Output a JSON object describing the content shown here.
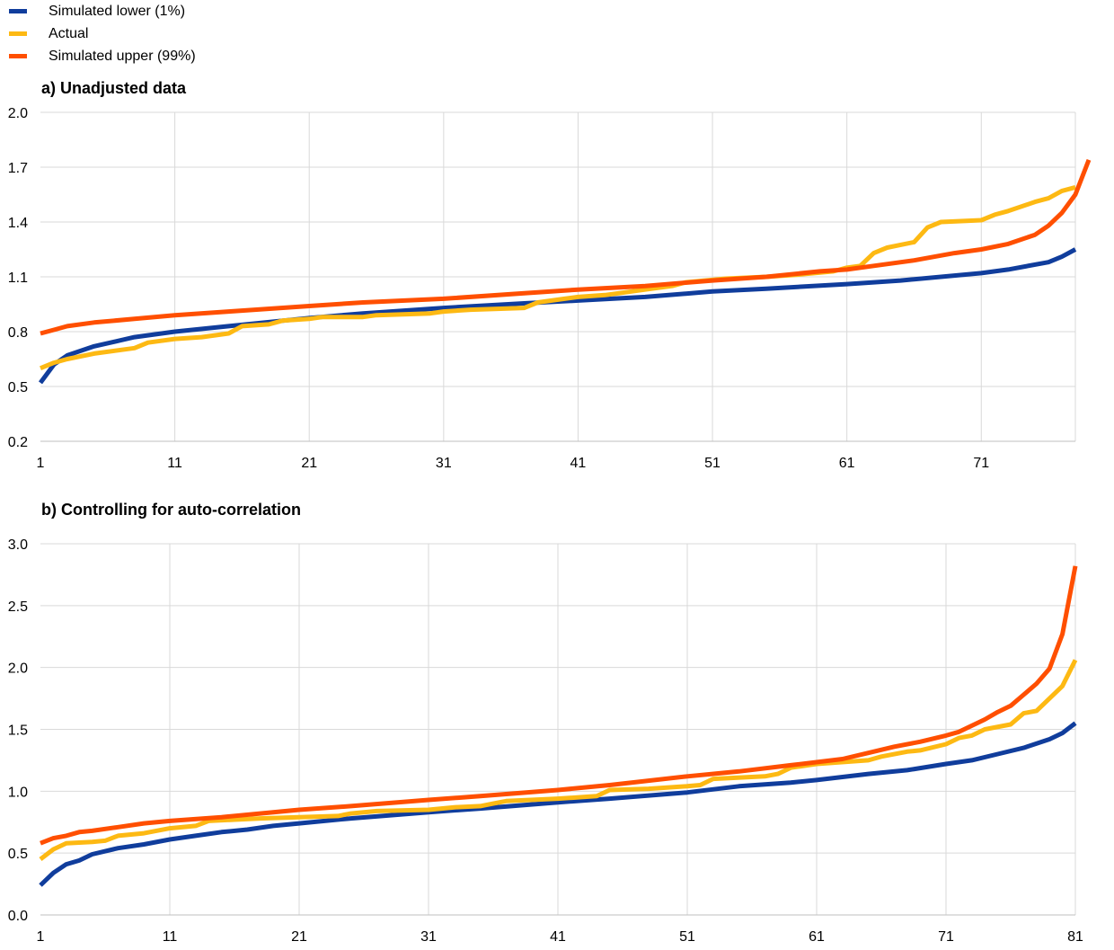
{
  "legend": [
    {
      "label": "Simulated lower (1%)",
      "color": "#103d9c"
    },
    {
      "label": "Actual",
      "color": "#fdb913"
    },
    {
      "label": "Simulated upper (99%)",
      "color": "#ff4f00"
    }
  ],
  "chart_data": [
    {
      "type": "line",
      "title": "a) Unadjusted data",
      "xlabel": "",
      "ylabel": "",
      "xlim": [
        1,
        78
      ],
      "ylim": [
        0.2,
        2.0
      ],
      "y_ticks": [
        "0.2",
        "0.5",
        "0.8",
        "1.1",
        "1.4",
        "1.7",
        "2.0"
      ],
      "x_ticks": [
        "1",
        "11",
        "21",
        "31",
        "41",
        "51",
        "61",
        "71"
      ],
      "grid": true,
      "legend_position": "top-left",
      "series": [
        {
          "name": "Simulated lower (1%)",
          "color": "#103d9c",
          "points": [
            [
              1,
              0.52
            ],
            [
              2,
              0.62
            ],
            [
              3,
              0.67
            ],
            [
              5,
              0.72
            ],
            [
              8,
              0.77
            ],
            [
              11,
              0.8
            ],
            [
              15,
              0.83
            ],
            [
              21,
              0.875
            ],
            [
              25,
              0.9
            ],
            [
              31,
              0.93
            ],
            [
              37,
              0.955
            ],
            [
              41,
              0.97
            ],
            [
              46,
              0.99
            ],
            [
              51,
              1.02
            ],
            [
              55,
              1.035
            ],
            [
              61,
              1.06
            ],
            [
              65,
              1.08
            ],
            [
              71,
              1.12
            ],
            [
              73,
              1.14
            ],
            [
              76,
              1.18
            ],
            [
              77,
              1.21
            ],
            [
              78,
              1.25
            ]
          ]
        },
        {
          "name": "Actual",
          "color": "#fdb913",
          "points": [
            [
              1,
              0.6
            ],
            [
              2,
              0.63
            ],
            [
              3,
              0.65
            ],
            [
              5,
              0.68
            ],
            [
              8,
              0.71
            ],
            [
              9,
              0.74
            ],
            [
              11,
              0.76
            ],
            [
              13,
              0.77
            ],
            [
              15,
              0.79
            ],
            [
              16,
              0.83
            ],
            [
              18,
              0.84
            ],
            [
              19,
              0.86
            ],
            [
              21,
              0.87
            ],
            [
              22,
              0.88
            ],
            [
              25,
              0.88
            ],
            [
              26,
              0.89
            ],
            [
              30,
              0.9
            ],
            [
              31,
              0.91
            ],
            [
              33,
              0.92
            ],
            [
              37,
              0.93
            ],
            [
              38,
              0.96
            ],
            [
              40,
              0.98
            ],
            [
              41,
              0.99
            ],
            [
              43,
              1.0
            ],
            [
              44,
              1.01
            ],
            [
              46,
              1.03
            ],
            [
              48,
              1.05
            ],
            [
              49,
              1.07
            ],
            [
              52,
              1.09
            ],
            [
              55,
              1.1
            ],
            [
              57,
              1.11
            ],
            [
              60,
              1.13
            ],
            [
              61,
              1.15
            ],
            [
              62,
              1.16
            ],
            [
              63,
              1.23
            ],
            [
              64,
              1.26
            ],
            [
              66,
              1.29
            ],
            [
              67,
              1.37
            ],
            [
              68,
              1.4
            ],
            [
              71,
              1.41
            ],
            [
              72,
              1.44
            ],
            [
              73,
              1.46
            ],
            [
              75,
              1.51
            ],
            [
              76,
              1.53
            ],
            [
              77,
              1.57
            ],
            [
              78,
              1.59
            ]
          ]
        },
        {
          "name": "Simulated upper (99%)",
          "color": "#ff4f00",
          "points": [
            [
              1,
              0.79
            ],
            [
              2,
              0.81
            ],
            [
              3,
              0.83
            ],
            [
              5,
              0.85
            ],
            [
              8,
              0.87
            ],
            [
              11,
              0.89
            ],
            [
              15,
              0.91
            ],
            [
              21,
              0.94
            ],
            [
              25,
              0.96
            ],
            [
              31,
              0.98
            ],
            [
              37,
              1.01
            ],
            [
              41,
              1.03
            ],
            [
              46,
              1.05
            ],
            [
              51,
              1.08
            ],
            [
              55,
              1.1
            ],
            [
              59,
              1.13
            ],
            [
              61,
              1.14
            ],
            [
              63,
              1.16
            ],
            [
              66,
              1.19
            ],
            [
              69,
              1.23
            ],
            [
              71,
              1.25
            ],
            [
              73,
              1.28
            ],
            [
              75,
              1.33
            ],
            [
              76,
              1.38
            ],
            [
              77,
              1.45
            ],
            [
              78,
              1.55
            ],
            [
              79,
              1.74
            ]
          ]
        }
      ]
    },
    {
      "type": "line",
      "title": "b) Controlling for auto-correlation",
      "xlabel": "",
      "ylabel": "",
      "xlim": [
        1,
        81
      ],
      "ylim": [
        0.0,
        3.0
      ],
      "y_ticks": [
        "0.0",
        "0.5",
        "1.0",
        "1.5",
        "2.0",
        "2.5",
        "3.0"
      ],
      "x_ticks": [
        "1",
        "11",
        "21",
        "31",
        "41",
        "51",
        "61",
        "71",
        "81"
      ],
      "grid": true,
      "series": [
        {
          "name": "Simulated lower (1%)",
          "color": "#103d9c",
          "points": [
            [
              1,
              0.24
            ],
            [
              2,
              0.34
            ],
            [
              3,
              0.41
            ],
            [
              4,
              0.44
            ],
            [
              5,
              0.49
            ],
            [
              7,
              0.54
            ],
            [
              9,
              0.57
            ],
            [
              11,
              0.61
            ],
            [
              13,
              0.64
            ],
            [
              15,
              0.67
            ],
            [
              17,
              0.69
            ],
            [
              19,
              0.72
            ],
            [
              21,
              0.74
            ],
            [
              25,
              0.78
            ],
            [
              31,
              0.83
            ],
            [
              35,
              0.86
            ],
            [
              41,
              0.91
            ],
            [
              45,
              0.94
            ],
            [
              51,
              0.99
            ],
            [
              55,
              1.04
            ],
            [
              59,
              1.07
            ],
            [
              61,
              1.09
            ],
            [
              65,
              1.14
            ],
            [
              68,
              1.17
            ],
            [
              71,
              1.22
            ],
            [
              73,
              1.25
            ],
            [
              75,
              1.3
            ],
            [
              77,
              1.35
            ],
            [
              79,
              1.42
            ],
            [
              80,
              1.47
            ],
            [
              81,
              1.55
            ]
          ]
        },
        {
          "name": "Actual",
          "color": "#fdb913",
          "points": [
            [
              1,
              0.45
            ],
            [
              2,
              0.53
            ],
            [
              3,
              0.58
            ],
            [
              5,
              0.59
            ],
            [
              6,
              0.6
            ],
            [
              7,
              0.64
            ],
            [
              9,
              0.66
            ],
            [
              11,
              0.7
            ],
            [
              13,
              0.72
            ],
            [
              14,
              0.76
            ],
            [
              16,
              0.77
            ],
            [
              18,
              0.78
            ],
            [
              21,
              0.79
            ],
            [
              24,
              0.8
            ],
            [
              25,
              0.82
            ],
            [
              27,
              0.84
            ],
            [
              31,
              0.85
            ],
            [
              33,
              0.87
            ],
            [
              35,
              0.88
            ],
            [
              36,
              0.9
            ],
            [
              37,
              0.92
            ],
            [
              41,
              0.94
            ],
            [
              44,
              0.96
            ],
            [
              45,
              1.01
            ],
            [
              48,
              1.02
            ],
            [
              51,
              1.04
            ],
            [
              52,
              1.05
            ],
            [
              53,
              1.1
            ],
            [
              57,
              1.12
            ],
            [
              58,
              1.14
            ],
            [
              59,
              1.19
            ],
            [
              61,
              1.22
            ],
            [
              65,
              1.25
            ],
            [
              66,
              1.28
            ],
            [
              68,
              1.32
            ],
            [
              69,
              1.33
            ],
            [
              71,
              1.38
            ],
            [
              72,
              1.43
            ],
            [
              73,
              1.45
            ],
            [
              74,
              1.5
            ],
            [
              76,
              1.54
            ],
            [
              77,
              1.63
            ],
            [
              78,
              1.65
            ],
            [
              80,
              1.85
            ],
            [
              81,
              2.06
            ]
          ]
        },
        {
          "name": "Simulated upper (99%)",
          "color": "#ff4f00",
          "points": [
            [
              1,
              0.58
            ],
            [
              2,
              0.62
            ],
            [
              3,
              0.64
            ],
            [
              4,
              0.67
            ],
            [
              5,
              0.68
            ],
            [
              7,
              0.71
            ],
            [
              9,
              0.74
            ],
            [
              11,
              0.76
            ],
            [
              15,
              0.79
            ],
            [
              19,
              0.83
            ],
            [
              21,
              0.85
            ],
            [
              25,
              0.88
            ],
            [
              31,
              0.93
            ],
            [
              35,
              0.96
            ],
            [
              41,
              1.01
            ],
            [
              45,
              1.05
            ],
            [
              51,
              1.12
            ],
            [
              55,
              1.16
            ],
            [
              59,
              1.21
            ],
            [
              63,
              1.26
            ],
            [
              65,
              1.31
            ],
            [
              67,
              1.36
            ],
            [
              69,
              1.4
            ],
            [
              71,
              1.45
            ],
            [
              72,
              1.48
            ],
            [
              73,
              1.53
            ],
            [
              74,
              1.58
            ],
            [
              75,
              1.64
            ],
            [
              76,
              1.69
            ],
            [
              77,
              1.78
            ],
            [
              78,
              1.87
            ],
            [
              79,
              1.99
            ],
            [
              80,
              2.27
            ],
            [
              81,
              2.82
            ]
          ]
        }
      ]
    }
  ]
}
